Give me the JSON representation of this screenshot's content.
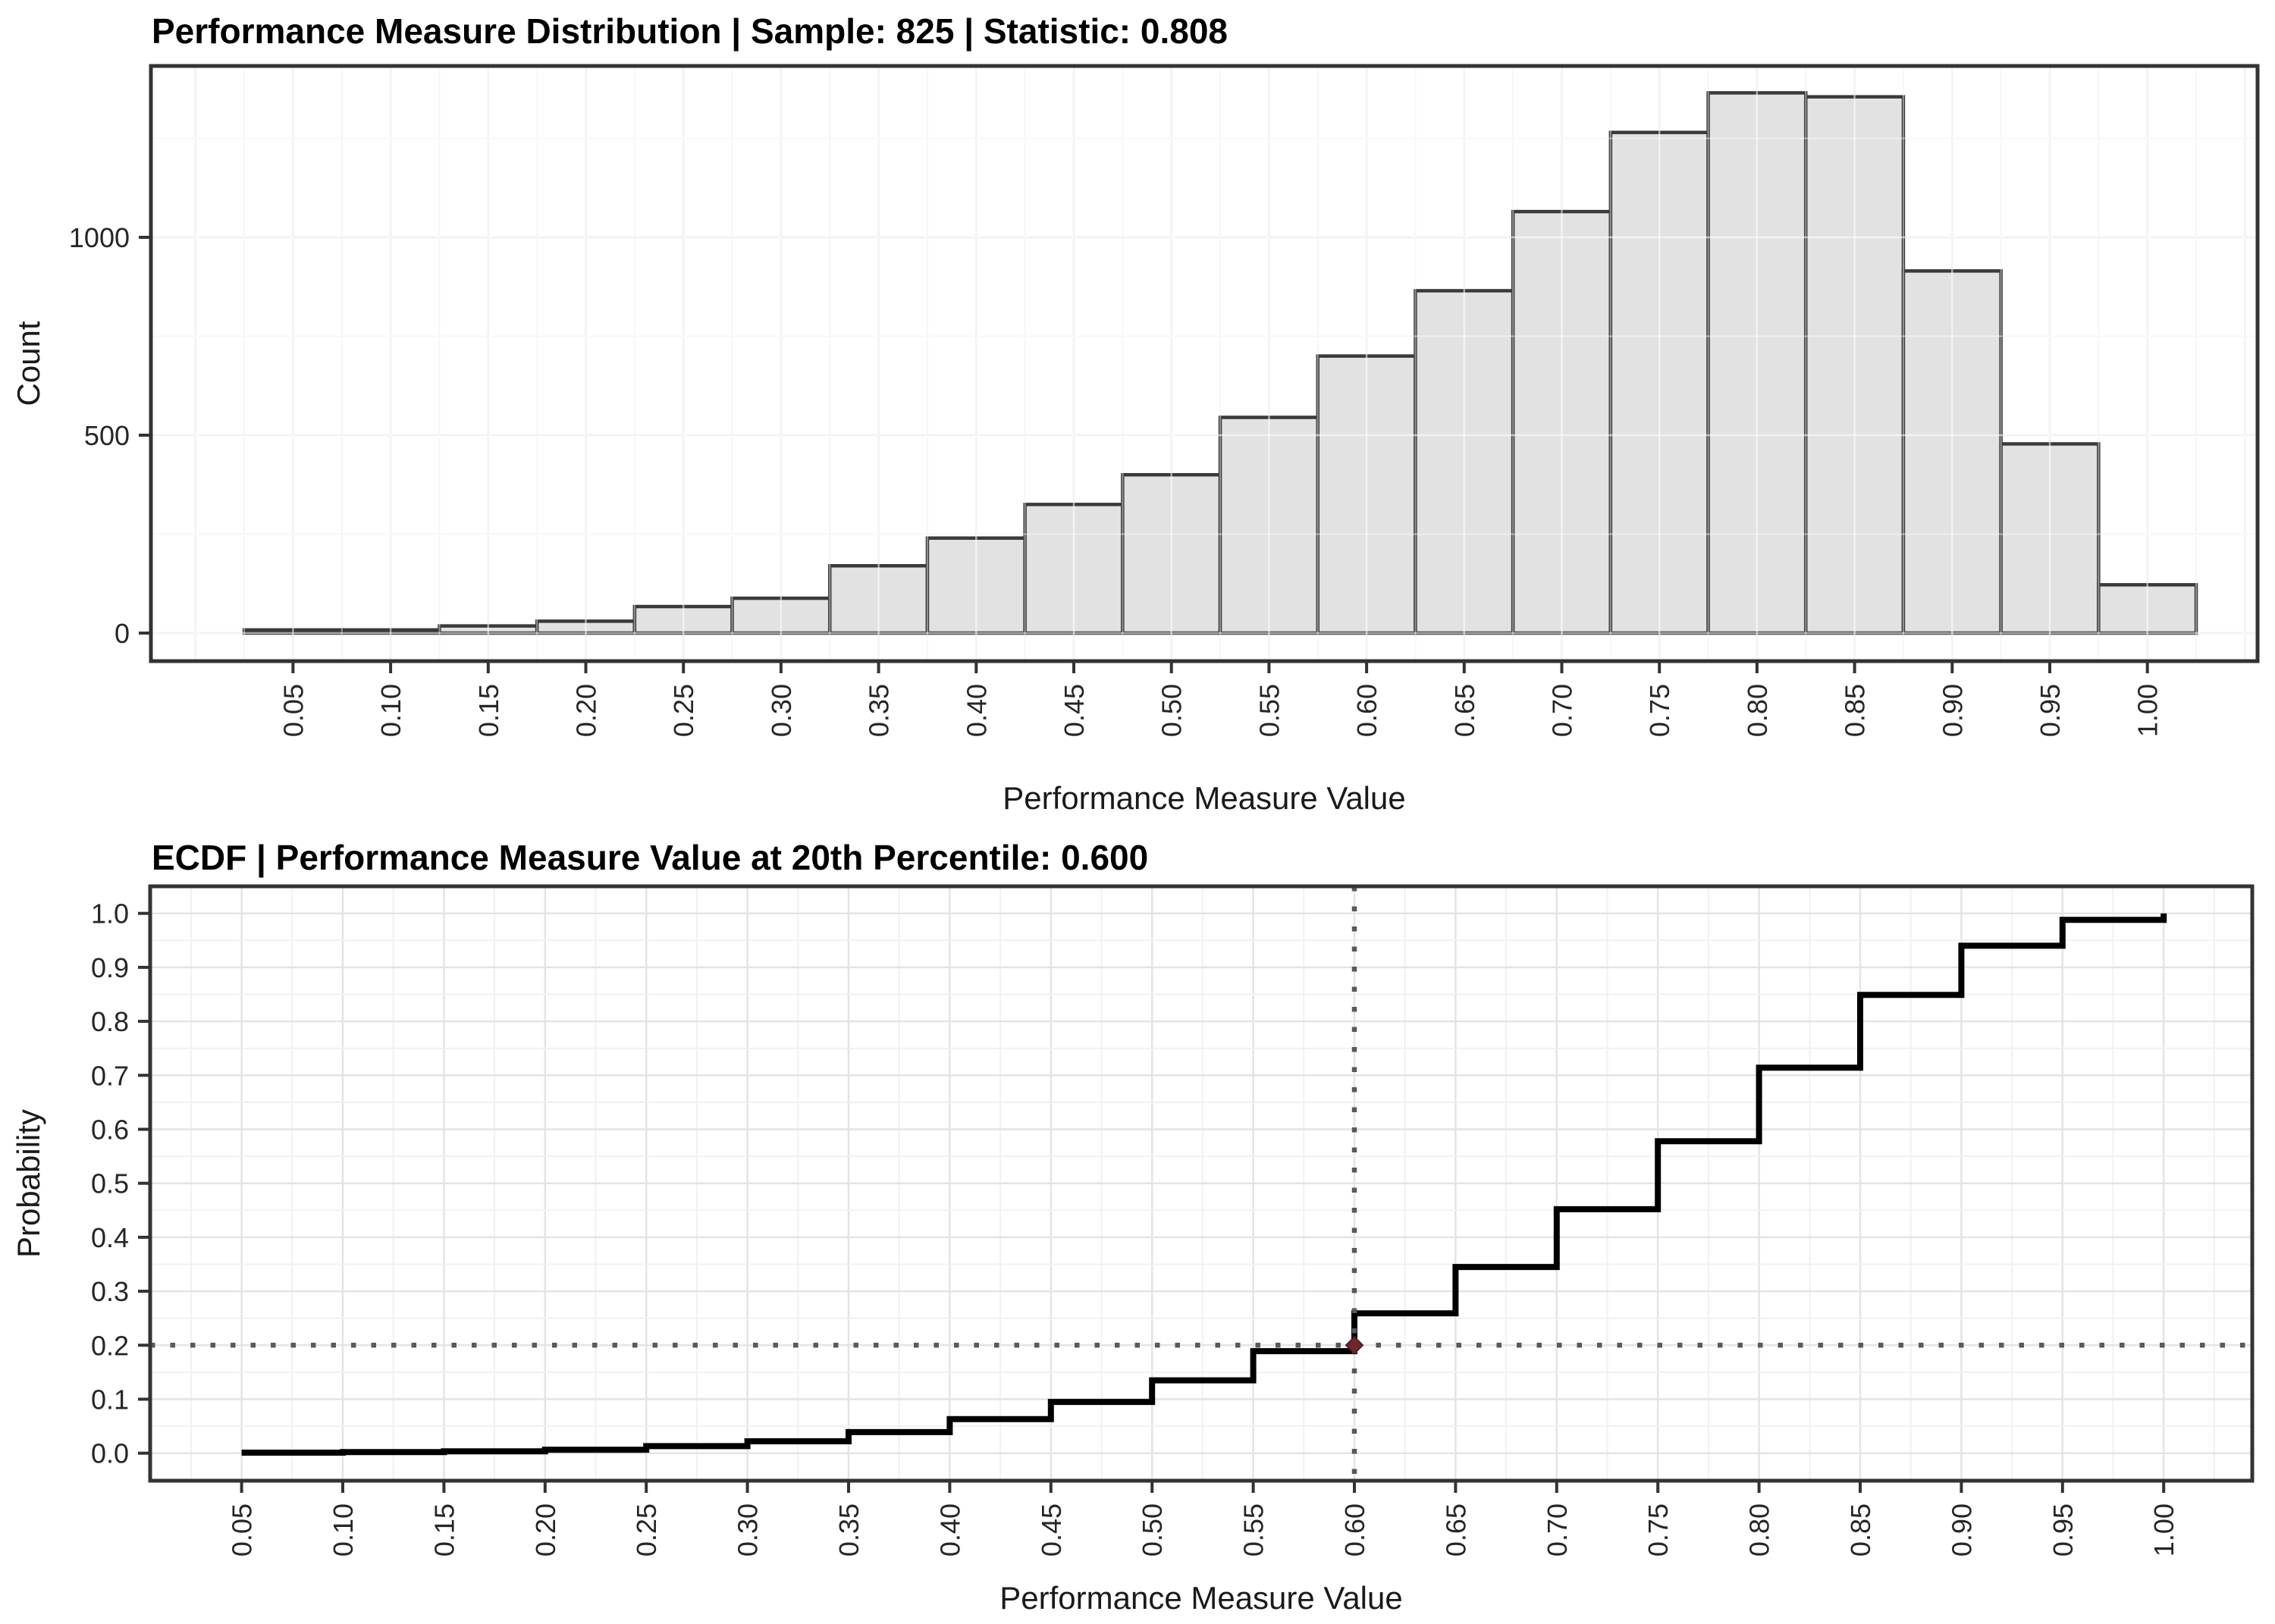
{
  "figure1": {
    "title": "Performance Measure Distribution | Sample: 825 | Statistic: 0.808",
    "sample": "825",
    "statistic": "0.808",
    "xlabel": "Performance Measure Value",
    "ylabel": "Count"
  },
  "figure2": {
    "title": "ECDF | Performance Measure Value at 20th Percentile: 0.600",
    "percentile_label": "20th",
    "percentile_value": "0.600",
    "xlabel": "Performance Measure Value",
    "ylabel": "Probability"
  },
  "chart_data": [
    {
      "type": "bar",
      "subtype": "histogram",
      "title": "Performance Measure Distribution | Sample: 825 | Statistic: 0.808",
      "xlabel": "Performance Measure Value",
      "ylabel": "Count",
      "bin_width": 0.05,
      "categories": [
        "0.05",
        "0.10",
        "0.15",
        "0.20",
        "0.25",
        "0.30",
        "0.35",
        "0.40",
        "0.45",
        "0.50",
        "0.55",
        "0.60",
        "0.65",
        "0.70",
        "0.75",
        "0.80",
        "0.85",
        "0.90",
        "0.95",
        "1.00"
      ],
      "bin_centers": [
        0.05,
        0.1,
        0.15,
        0.2,
        0.25,
        0.3,
        0.35,
        0.4,
        0.45,
        0.5,
        0.55,
        0.6,
        0.65,
        0.7,
        0.75,
        0.8,
        0.85,
        0.9,
        0.95,
        1.0
      ],
      "values": [
        8,
        8,
        18,
        30,
        67,
        88,
        170,
        240,
        325,
        400,
        545,
        700,
        865,
        1065,
        1265,
        1365,
        1355,
        915,
        478,
        122
      ],
      "ylim": [
        0,
        1433
      ],
      "yticks": [
        0,
        500,
        1000
      ],
      "ytick_labels": [
        "0",
        "500",
        "1000"
      ],
      "yticks_minor": [
        250,
        750,
        1250
      ],
      "grid": "major and minor, light gray",
      "legend": "none"
    },
    {
      "type": "line",
      "subtype": "step-ecdf",
      "title": "ECDF | Performance Measure Value at 20th Percentile: 0.600",
      "xlabel": "Performance Measure Value",
      "ylabel": "Probability",
      "x": [
        0.05,
        0.1,
        0.15,
        0.2,
        0.25,
        0.3,
        0.35,
        0.4,
        0.45,
        0.5,
        0.55,
        0.6,
        0.65,
        0.7,
        0.75,
        0.8,
        0.85,
        0.9,
        0.95,
        1.0
      ],
      "y": [
        0.001,
        0.002,
        0.0035,
        0.0065,
        0.013,
        0.022,
        0.039,
        0.063,
        0.095,
        0.135,
        0.189,
        0.259,
        0.345,
        0.452,
        0.578,
        0.714,
        0.849,
        0.94,
        0.988,
        1.0
      ],
      "xtick_labels": [
        "0.05",
        "0.10",
        "0.15",
        "0.20",
        "0.25",
        "0.30",
        "0.35",
        "0.40",
        "0.45",
        "0.50",
        "0.55",
        "0.60",
        "0.65",
        "0.70",
        "0.75",
        "0.80",
        "0.85",
        "0.90",
        "0.95",
        "1.00"
      ],
      "ytick_labels": [
        "0.0",
        "0.1",
        "0.2",
        "0.3",
        "0.4",
        "0.5",
        "0.6",
        "0.7",
        "0.8",
        "0.9",
        "1.0"
      ],
      "ylim": [
        0,
        1.05
      ],
      "grid": "major and minor, light gray",
      "legend": "none",
      "annotations": {
        "hline_dotted_y": 0.2,
        "vline_dotted_x": 0.6,
        "point": {
          "x": 0.6,
          "y": 0.2,
          "shape": "diamond"
        }
      }
    }
  ],
  "colors": {
    "background": "#FFFFFF",
    "bar_fill": "#E2E2E2",
    "bar_stroke": "#3A3A3A",
    "panel_border": "#333333",
    "grid_major": "#E4E4E4",
    "grid_minor": "#F1F1F1",
    "axis_text": "#262626",
    "axis_title": "#1A1A1A",
    "ecdf_line": "#000000",
    "dotted_line": "#595959",
    "point_fill": "#6F262C"
  }
}
